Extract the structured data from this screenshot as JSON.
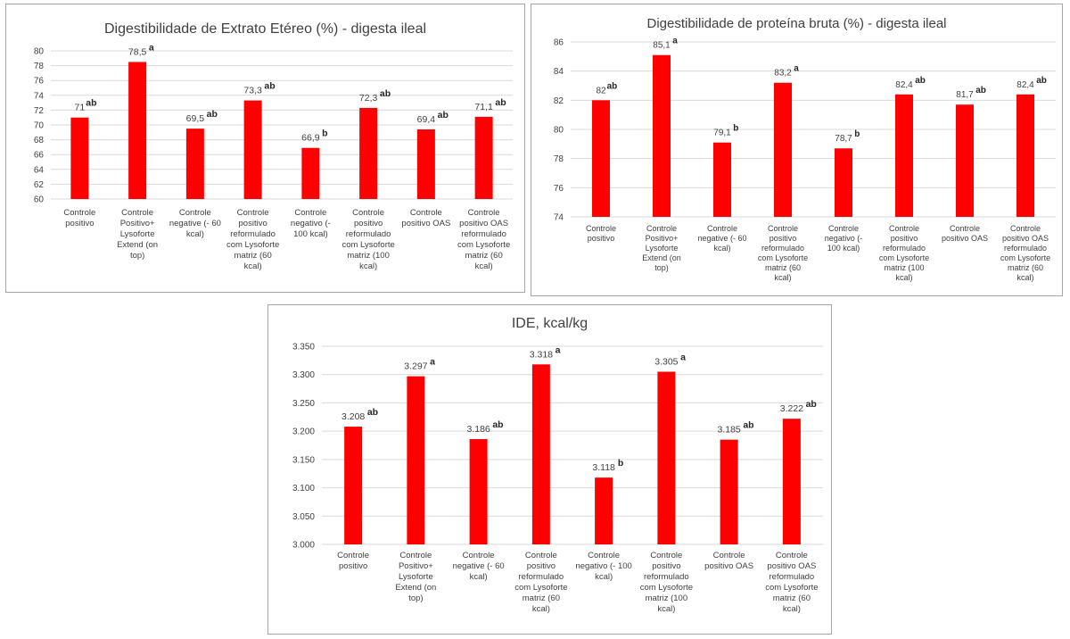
{
  "chart_data": [
    {
      "type": "bar",
      "title": "Digestibilidade de Extrato Etéreo (%) - digesta ileal",
      "categories": [
        [
          "Controle",
          "positivo"
        ],
        [
          "Controle",
          "Positivo+",
          "Lysoforte",
          "Extend (on",
          "top)"
        ],
        [
          "Controle",
          "negative (- 60",
          "kcal)"
        ],
        [
          "Controle",
          "positivo",
          "reformulado",
          "com Lysoforte",
          "matriz (60",
          "kcal)"
        ],
        [
          "Controle",
          "negativo (-",
          "100 kcal)"
        ],
        [
          "Controle",
          "positivo",
          "reformulado",
          "com Lysoforte",
          "matriz (100",
          "kcal)"
        ],
        [
          "Controle",
          "positivo OAS"
        ],
        [
          "Controle",
          "positivo OAS",
          "reformulado",
          "com Lysoforte",
          "matriz (60",
          "kcal)"
        ]
      ],
      "values": [
        71,
        78.5,
        69.5,
        73.3,
        66.9,
        72.3,
        69.4,
        71.1
      ],
      "value_labels": [
        "71",
        "78,5",
        "69,5",
        "73,3",
        "66,9",
        "72,3",
        "69,4",
        "71,1"
      ],
      "significance": [
        "ab",
        "a",
        "ab",
        "ab",
        "b",
        "ab",
        "ab",
        "ab"
      ],
      "ylim": [
        60,
        80
      ],
      "yticks": [
        60,
        62,
        64,
        66,
        68,
        70,
        72,
        74,
        76,
        78,
        80
      ],
      "ytick_labels": [
        "60",
        "62",
        "64",
        "66",
        "68",
        "70",
        "72",
        "74",
        "76",
        "78",
        "80"
      ],
      "bar_color": "#ff0000",
      "grid": true,
      "legend": "none"
    },
    {
      "type": "bar",
      "title": "Digestibilidade de proteína bruta (%) - digesta ileal",
      "categories": [
        [
          "Controle",
          "positivo"
        ],
        [
          "Controle",
          "Positivo+",
          "Lysoforte",
          "Extend (on",
          "top)"
        ],
        [
          "Controle",
          "negative (- 60",
          "kcal)"
        ],
        [
          "Controle",
          "positivo",
          "reformulado",
          "com Lysoforte",
          "matriz (60",
          "kcal)"
        ],
        [
          "Controle",
          "negativo (-",
          "100 kcal)"
        ],
        [
          "Controle",
          "positivo",
          "reformulado",
          "com Lysoforte",
          "matriz (100",
          "kcal)"
        ],
        [
          "Controle",
          "positivo OAS"
        ],
        [
          "Controle",
          "positivo OAS",
          "reformulado",
          "com Lysoforte",
          "matriz (60",
          "kcal)"
        ]
      ],
      "values": [
        82,
        85.1,
        79.1,
        83.2,
        78.7,
        82.4,
        81.7,
        82.4
      ],
      "value_labels": [
        "82",
        "85,1",
        "79,1",
        "83,2",
        "78,7",
        "82,4",
        "81,7",
        "82,4"
      ],
      "significance": [
        "ab",
        "a",
        "b",
        "a",
        "b",
        "ab",
        "ab",
        "ab"
      ],
      "ylim": [
        74,
        86
      ],
      "yticks": [
        74,
        76,
        78,
        80,
        82,
        84,
        86
      ],
      "ytick_labels": [
        "74",
        "76",
        "78",
        "80",
        "82",
        "84",
        "86"
      ],
      "bar_color": "#ff0000",
      "grid": true,
      "legend": "none"
    },
    {
      "type": "bar",
      "title": "IDE, kcal/kg",
      "categories": [
        [
          "Controle",
          "positivo"
        ],
        [
          "Controle",
          "Positivo+",
          "Lysoforte",
          "Extend (on",
          "top)"
        ],
        [
          "Controle",
          "negative (- 60",
          "kcal)"
        ],
        [
          "Controle",
          "positivo",
          "reformulado",
          "com Lysoforte",
          "matriz (60",
          "kcal)"
        ],
        [
          "Controle",
          "negativo (- 100",
          "kcal)"
        ],
        [
          "Controle",
          "positivo",
          "reformulado",
          "com Lysoforte",
          "matriz (100",
          "kcal)"
        ],
        [
          "Controle",
          "positivo OAS"
        ],
        [
          "Controle",
          "positivo OAS",
          "reformulado",
          "com Lysoforte",
          "matriz (60",
          "kcal)"
        ]
      ],
      "values": [
        3208,
        3297,
        3186,
        3318,
        3118,
        3305,
        3185,
        3222
      ],
      "value_labels": [
        "3.208",
        "3.297",
        "3.186",
        "3.318",
        "3.118",
        "3.305",
        "3.185",
        "3.222"
      ],
      "significance": [
        "ab",
        "a",
        "ab",
        "a",
        "b",
        "a",
        "ab",
        "ab"
      ],
      "ylim": [
        3000,
        3350
      ],
      "yticks": [
        3000,
        3050,
        3100,
        3150,
        3200,
        3250,
        3300,
        3350
      ],
      "ytick_labels": [
        "3.000",
        "3.050",
        "3.100",
        "3.150",
        "3.200",
        "3.250",
        "3.300",
        "3.350"
      ],
      "bar_color": "#ff0000",
      "grid": true,
      "legend": "none"
    }
  ]
}
